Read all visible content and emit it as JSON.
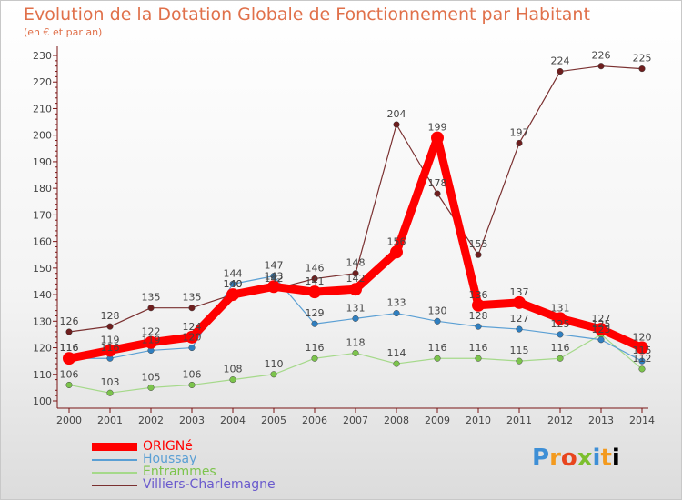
{
  "chart_data": {
    "type": "line",
    "title": "Evolution de la Dotation Globale de Fonctionnement par Habitant",
    "subtitle": "(en € et par an)",
    "x": [
      "2000",
      "2001",
      "2002",
      "2003",
      "2004",
      "2005",
      "2006",
      "2007",
      "2008",
      "2009",
      "2010",
      "2011",
      "2012",
      "2013",
      "2014"
    ],
    "ylim": [
      100,
      230
    ],
    "yticks": [
      100,
      110,
      120,
      130,
      140,
      150,
      160,
      170,
      180,
      190,
      200,
      210,
      220,
      230
    ],
    "grid": false,
    "legend_position": "bottom-left",
    "series": [
      {
        "name": "ORIGNé",
        "color": "#ff0000",
        "point_color": "#ff0000",
        "values": [
          116,
          119,
          122,
          124,
          140,
          143,
          141,
          142,
          156,
          199,
          136,
          137,
          131,
          127,
          120
        ]
      },
      {
        "name": "Houssay",
        "color": "#5a9fd4",
        "point_color": "#2f7fc0",
        "values": [
          116,
          116,
          119,
          120,
          144,
          147,
          129,
          131,
          133,
          130,
          128,
          127,
          125,
          123,
          115
        ]
      },
      {
        "name": "Entrammes",
        "color": "#a5d98a",
        "point_color": "#7cc44c",
        "values": [
          106,
          103,
          105,
          106,
          108,
          110,
          116,
          118,
          114,
          116,
          116,
          115,
          116,
          125,
          112
        ]
      },
      {
        "name": "Villiers-Charlemagne",
        "color": "#7a3030",
        "point_color": "#6e1e1e",
        "values": [
          126,
          128,
          135,
          135,
          140,
          142,
          146,
          148,
          204,
          178,
          155,
          197,
          224,
          226,
          225
        ]
      }
    ]
  },
  "logo": {
    "letters": [
      "P",
      "r",
      "o",
      "x",
      "i",
      "t",
      "i"
    ]
  }
}
